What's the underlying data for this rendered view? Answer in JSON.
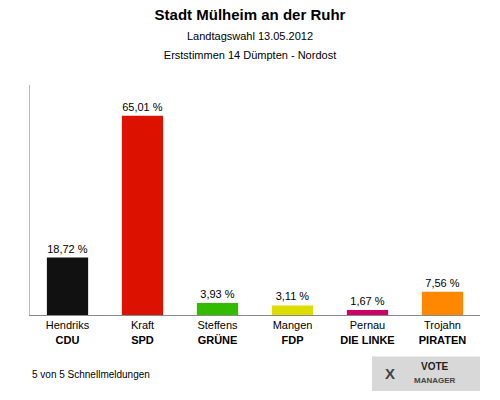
{
  "chart_data": {
    "type": "bar",
    "title": "Stadt Mülheim an der Ruhr",
    "subtitle": [
      "Landtagswahl 13.05.2012",
      "Erststimmen 14 Dümpten - Nordost"
    ],
    "categories": [
      "Hendriks\nCDU",
      "Kraft\nSPD",
      "Steffens\nGRÜNE",
      "Mangen\nFDP",
      "Pernau\nDIE LINKE",
      "Trojahn\nPIRATEN"
    ],
    "values": [
      18.72,
      65.01,
      3.93,
      3.11,
      1.67,
      7.56
    ],
    "value_labels": [
      "18,72 %",
      "65,01 %",
      "3,93 %",
      "3,11 %",
      "1,67 %",
      "7,56 %"
    ],
    "colors": [
      "#111111",
      "#dd1100",
      "#33bb00",
      "#dddd00",
      "#cc0066",
      "#ff8800"
    ],
    "data_labels": true,
    "ylim": [
      0,
      75
    ],
    "tick_labels": "x",
    "grid": false,
    "annotations": [
      "5 von 5 Schnellmeldungen",
      "X",
      "VOTE",
      "MANAGER"
    ]
  }
}
